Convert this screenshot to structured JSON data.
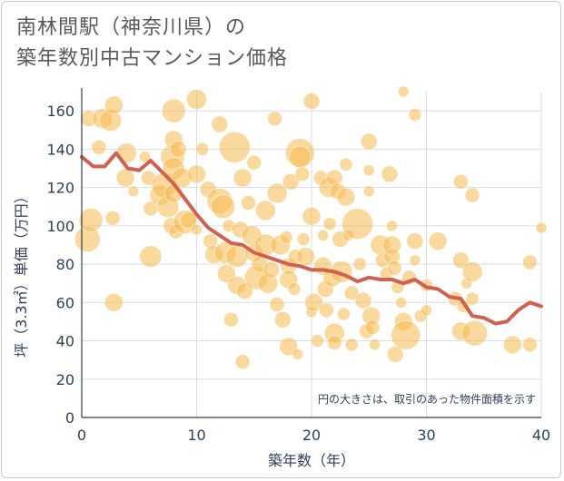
{
  "header": {
    "title_line1": "南林間駅（神奈川県）の",
    "title_line2": "築年数別中古マンション価格"
  },
  "colors": {
    "bubble": "#f5b94f",
    "line": "#d0614e",
    "grid": "#d6dde6",
    "axis": "#2d3f5a"
  },
  "chart_data": {
    "type": "scatter",
    "xlabel": "築年数（年）",
    "ylabel": "坪（3.3㎡）単価（万円）",
    "xlim": [
      0,
      40
    ],
    "ylim": [
      0,
      170
    ],
    "xticks": [
      0,
      10,
      20,
      30,
      40
    ],
    "yticks": [
      0,
      20,
      40,
      60,
      80,
      100,
      120,
      140,
      160
    ],
    "annotation": "円の大きさは、取引のあった物件面積を示す",
    "trend_line": {
      "x": [
        0,
        1,
        2,
        3,
        4,
        5,
        6,
        7,
        8,
        9,
        10,
        11,
        12,
        13,
        14,
        15,
        16,
        17,
        18,
        19,
        20,
        21,
        22,
        23,
        24,
        25,
        26,
        27,
        28,
        29,
        30,
        31,
        32,
        33,
        34,
        35,
        36,
        37,
        38,
        39,
        40
      ],
      "y": [
        136,
        131,
        131,
        138,
        130,
        129,
        134,
        128,
        122,
        114,
        106,
        99,
        95,
        91,
        90,
        86,
        84,
        82,
        80,
        79,
        77,
        77,
        76,
        74,
        71,
        73,
        72,
        72,
        70,
        72,
        68,
        67,
        63,
        62,
        53,
        52,
        49,
        50,
        56,
        60,
        58
      ]
    },
    "bubbles": [
      {
        "x": 0.5,
        "y": 93,
        "s": 14
      },
      {
        "x": 0.8,
        "y": 103,
        "s": 13
      },
      {
        "x": 0.6,
        "y": 156,
        "s": 9
      },
      {
        "x": 1.5,
        "y": 141,
        "s": 8
      },
      {
        "x": 1.8,
        "y": 156,
        "s": 11
      },
      {
        "x": 2.5,
        "y": 155,
        "s": 12
      },
      {
        "x": 2.8,
        "y": 163,
        "s": 10
      },
      {
        "x": 2.7,
        "y": 104,
        "s": 8
      },
      {
        "x": 2.8,
        "y": 60,
        "s": 10
      },
      {
        "x": 3.8,
        "y": 125,
        "s": 10
      },
      {
        "x": 3.9,
        "y": 138,
        "s": 11
      },
      {
        "x": 4.5,
        "y": 118,
        "s": 6
      },
      {
        "x": 5.5,
        "y": 136,
        "s": 6
      },
      {
        "x": 5.8,
        "y": 125,
        "s": 8
      },
      {
        "x": 6.0,
        "y": 84,
        "s": 12
      },
      {
        "x": 6.0,
        "y": 109,
        "s": 8
      },
      {
        "x": 6.8,
        "y": 116,
        "s": 11
      },
      {
        "x": 7.2,
        "y": 121,
        "s": 14
      },
      {
        "x": 7.5,
        "y": 110,
        "s": 12
      },
      {
        "x": 7.8,
        "y": 100,
        "s": 9
      },
      {
        "x": 7.9,
        "y": 136,
        "s": 13
      },
      {
        "x": 8.0,
        "y": 145,
        "s": 10
      },
      {
        "x": 8.0,
        "y": 160,
        "s": 13
      },
      {
        "x": 8.0,
        "y": 130,
        "s": 12
      },
      {
        "x": 8.0,
        "y": 117,
        "s": 10
      },
      {
        "x": 8.2,
        "y": 97,
        "s": 8
      },
      {
        "x": 8.4,
        "y": 140,
        "s": 9
      },
      {
        "x": 8.7,
        "y": 125,
        "s": 11
      },
      {
        "x": 9.0,
        "y": 102,
        "s": 13
      },
      {
        "x": 9.3,
        "y": 103,
        "s": 9
      },
      {
        "x": 10.0,
        "y": 127,
        "s": 10
      },
      {
        "x": 10.0,
        "y": 166,
        "s": 11
      },
      {
        "x": 10.0,
        "y": 98,
        "s": 6
      },
      {
        "x": 10.5,
        "y": 140,
        "s": 7
      },
      {
        "x": 11.0,
        "y": 119,
        "s": 9
      },
      {
        "x": 11.2,
        "y": 92,
        "s": 8
      },
      {
        "x": 11.5,
        "y": 85,
        "s": 10
      },
      {
        "x": 12.0,
        "y": 153,
        "s": 9
      },
      {
        "x": 12.0,
        "y": 113,
        "s": 14
      },
      {
        "x": 12.3,
        "y": 110,
        "s": 13
      },
      {
        "x": 12.5,
        "y": 86,
        "s": 12
      },
      {
        "x": 12.6,
        "y": 75,
        "s": 10
      },
      {
        "x": 12.8,
        "y": 100,
        "s": 7
      },
      {
        "x": 13.0,
        "y": 51,
        "s": 8
      },
      {
        "x": 13.3,
        "y": 141,
        "s": 17
      },
      {
        "x": 13.5,
        "y": 84,
        "s": 12
      },
      {
        "x": 13.5,
        "y": 69,
        "s": 10
      },
      {
        "x": 13.8,
        "y": 98,
        "s": 9
      },
      {
        "x": 14.0,
        "y": 125,
        "s": 10
      },
      {
        "x": 14.0,
        "y": 29,
        "s": 8
      },
      {
        "x": 14.2,
        "y": 66,
        "s": 9
      },
      {
        "x": 14.5,
        "y": 112,
        "s": 8
      },
      {
        "x": 14.8,
        "y": 95,
        "s": 11
      },
      {
        "x": 15.0,
        "y": 86,
        "s": 10
      },
      {
        "x": 15.0,
        "y": 133,
        "s": 8
      },
      {
        "x": 15.2,
        "y": 73,
        "s": 13
      },
      {
        "x": 15.5,
        "y": 80,
        "s": 9
      },
      {
        "x": 16.0,
        "y": 108,
        "s": 11
      },
      {
        "x": 16.0,
        "y": 90,
        "s": 12
      },
      {
        "x": 16.2,
        "y": 70,
        "s": 11
      },
      {
        "x": 16.5,
        "y": 77,
        "s": 9
      },
      {
        "x": 16.8,
        "y": 156,
        "s": 8
      },
      {
        "x": 17.0,
        "y": 117,
        "s": 11
      },
      {
        "x": 17.0,
        "y": 59,
        "s": 8
      },
      {
        "x": 17.3,
        "y": 90,
        "s": 11
      },
      {
        "x": 17.5,
        "y": 51,
        "s": 9
      },
      {
        "x": 17.8,
        "y": 94,
        "s": 7
      },
      {
        "x": 18.0,
        "y": 79,
        "s": 9
      },
      {
        "x": 18.0,
        "y": 72,
        "s": 10
      },
      {
        "x": 18.0,
        "y": 37,
        "s": 10
      },
      {
        "x": 18.2,
        "y": 123,
        "s": 9
      },
      {
        "x": 18.5,
        "y": 67,
        "s": 7
      },
      {
        "x": 18.6,
        "y": 84,
        "s": 8
      },
      {
        "x": 18.8,
        "y": 33,
        "s": 6
      },
      {
        "x": 19.0,
        "y": 138,
        "s": 16
      },
      {
        "x": 19.0,
        "y": 136,
        "s": 12
      },
      {
        "x": 19.2,
        "y": 127,
        "s": 8
      },
      {
        "x": 19.3,
        "y": 93,
        "s": 7
      },
      {
        "x": 19.5,
        "y": 84,
        "s": 10
      },
      {
        "x": 20.0,
        "y": 165,
        "s": 9
      },
      {
        "x": 20.0,
        "y": 105,
        "s": 10
      },
      {
        "x": 20.0,
        "y": 55,
        "s": 6
      },
      {
        "x": 20.2,
        "y": 60,
        "s": 10
      },
      {
        "x": 20.5,
        "y": 40,
        "s": 7
      },
      {
        "x": 20.8,
        "y": 125,
        "s": 8
      },
      {
        "x": 21.0,
        "y": 95,
        "s": 6
      },
      {
        "x": 21.0,
        "y": 79,
        "s": 10
      },
      {
        "x": 21.2,
        "y": 67,
        "s": 9
      },
      {
        "x": 21.3,
        "y": 56,
        "s": 8
      },
      {
        "x": 21.5,
        "y": 120,
        "s": 11
      },
      {
        "x": 21.6,
        "y": 101,
        "s": 7
      },
      {
        "x": 21.8,
        "y": 73,
        "s": 10
      },
      {
        "x": 22.0,
        "y": 125,
        "s": 9
      },
      {
        "x": 22.0,
        "y": 44,
        "s": 11
      },
      {
        "x": 22.0,
        "y": 39,
        "s": 8
      },
      {
        "x": 22.3,
        "y": 118,
        "s": 9
      },
      {
        "x": 22.5,
        "y": 93,
        "s": 9
      },
      {
        "x": 22.6,
        "y": 76,
        "s": 12
      },
      {
        "x": 22.8,
        "y": 54,
        "s": 7
      },
      {
        "x": 23.0,
        "y": 132,
        "s": 7
      },
      {
        "x": 23.0,
        "y": 115,
        "s": 10
      },
      {
        "x": 23.2,
        "y": 95,
        "s": 6
      },
      {
        "x": 23.5,
        "y": 65,
        "s": 8
      },
      {
        "x": 23.5,
        "y": 38,
        "s": 7
      },
      {
        "x": 24.0,
        "y": 101,
        "s": 17
      },
      {
        "x": 24.2,
        "y": 80,
        "s": 7
      },
      {
        "x": 24.5,
        "y": 61,
        "s": 9
      },
      {
        "x": 24.8,
        "y": 45,
        "s": 8
      },
      {
        "x": 25.0,
        "y": 144,
        "s": 9
      },
      {
        "x": 25.0,
        "y": 129,
        "s": 6
      },
      {
        "x": 25.0,
        "y": 118,
        "s": 6
      },
      {
        "x": 25.2,
        "y": 53,
        "s": 10
      },
      {
        "x": 25.3,
        "y": 47,
        "s": 8
      },
      {
        "x": 25.5,
        "y": 38,
        "s": 6
      },
      {
        "x": 26.0,
        "y": 90,
        "s": 11
      },
      {
        "x": 26.2,
        "y": 82,
        "s": 8
      },
      {
        "x": 26.5,
        "y": 75,
        "s": 7
      },
      {
        "x": 26.8,
        "y": 127,
        "s": 9
      },
      {
        "x": 27.0,
        "y": 100,
        "s": 6
      },
      {
        "x": 27.0,
        "y": 90,
        "s": 10
      },
      {
        "x": 27.0,
        "y": 84,
        "s": 9
      },
      {
        "x": 27.2,
        "y": 78,
        "s": 8
      },
      {
        "x": 27.3,
        "y": 33,
        "s": 9
      },
      {
        "x": 27.5,
        "y": 68,
        "s": 7
      },
      {
        "x": 27.8,
        "y": 60,
        "s": 6
      },
      {
        "x": 28.0,
        "y": 170,
        "s": 6
      },
      {
        "x": 28.0,
        "y": 50,
        "s": 10
      },
      {
        "x": 28.2,
        "y": 43,
        "s": 16
      },
      {
        "x": 28.5,
        "y": 73,
        "s": 8
      },
      {
        "x": 29.0,
        "y": 158,
        "s": 7
      },
      {
        "x": 29.0,
        "y": 92,
        "s": 9
      },
      {
        "x": 29.0,
        "y": 82,
        "s": 6
      },
      {
        "x": 29.5,
        "y": 53,
        "s": 7
      },
      {
        "x": 30.0,
        "y": 69,
        "s": 7
      },
      {
        "x": 30.0,
        "y": 56,
        "s": 6
      },
      {
        "x": 31.0,
        "y": 92,
        "s": 10
      },
      {
        "x": 32.5,
        "y": 62,
        "s": 8
      },
      {
        "x": 33.0,
        "y": 123,
        "s": 8
      },
      {
        "x": 33.0,
        "y": 82,
        "s": 9
      },
      {
        "x": 33.0,
        "y": 45,
        "s": 10
      },
      {
        "x": 33.2,
        "y": 58,
        "s": 7
      },
      {
        "x": 33.5,
        "y": 70,
        "s": 6
      },
      {
        "x": 34.0,
        "y": 116,
        "s": 8
      },
      {
        "x": 34.0,
        "y": 76,
        "s": 11
      },
      {
        "x": 34.0,
        "y": 62,
        "s": 7
      },
      {
        "x": 34.2,
        "y": 44,
        "s": 14
      },
      {
        "x": 37.5,
        "y": 38,
        "s": 10
      },
      {
        "x": 39.0,
        "y": 81,
        "s": 8
      },
      {
        "x": 39.0,
        "y": 38,
        "s": 8
      },
      {
        "x": 40.0,
        "y": 99,
        "s": 6
      }
    ]
  }
}
